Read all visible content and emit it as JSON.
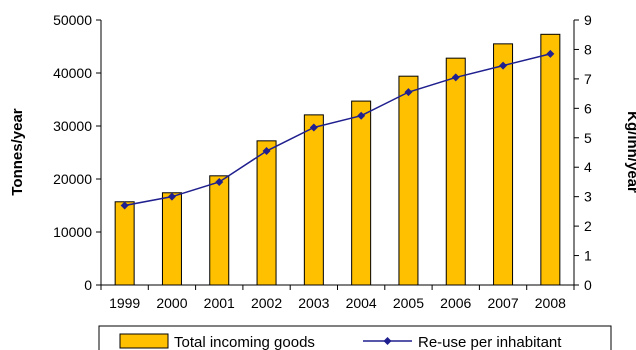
{
  "chart_data": {
    "type": "bar",
    "categories": [
      "1999",
      "2000",
      "2001",
      "2002",
      "2003",
      "2004",
      "2005",
      "2006",
      "2007",
      "2008"
    ],
    "series": [
      {
        "name": "Total incoming goods",
        "type": "bar",
        "axis": "left",
        "color": "#FFC000",
        "values": [
          15700,
          17400,
          20600,
          27200,
          32100,
          34700,
          39400,
          42800,
          45500,
          47300
        ]
      },
      {
        "name": "Re-use per inhabitant",
        "type": "line",
        "axis": "right",
        "color": "#1F1F8F",
        "values": [
          2.7,
          3.0,
          3.5,
          4.55,
          5.35,
          5.75,
          6.55,
          7.05,
          7.45,
          7.85
        ]
      }
    ],
    "ylabel": "Tonnes/year",
    "y2label": "Kg/inh/year",
    "ylim": [
      0,
      50000
    ],
    "y2lim": [
      0,
      9
    ],
    "yticks": [
      "0",
      "10000",
      "20000",
      "30000",
      "40000",
      "50000"
    ],
    "y2ticks": [
      "0",
      "1",
      "2",
      "3",
      "4",
      "5",
      "6",
      "7",
      "8",
      "9"
    ],
    "grid": false,
    "legend_position": "bottom"
  }
}
